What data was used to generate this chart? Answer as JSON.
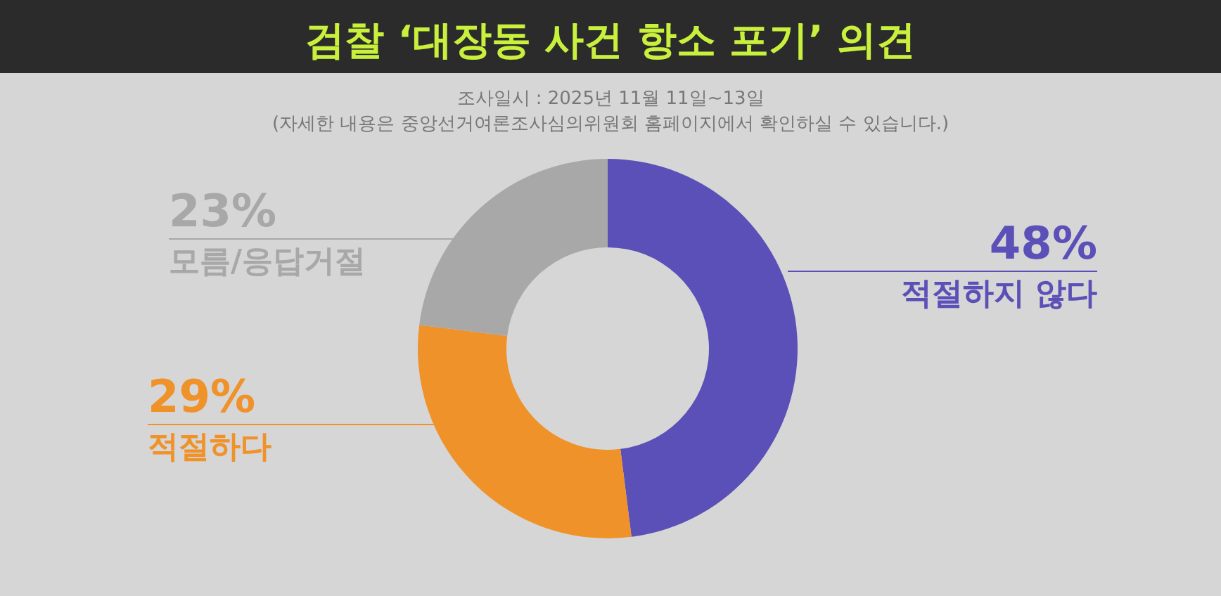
{
  "chart_data": {
    "type": "donut",
    "title": "검찰 ‘대장동 사건 항소 포기’ 의견",
    "subtitle": "조사일시 : 2025년 11월 11일~13일",
    "annotations": [
      "(자세한 내용은 중앙선거여론조사심의위원회 홈페이지에서 확인하실 수 있습니다.)"
    ],
    "categories": [
      "적절하지 않다",
      "적절하다",
      "모름/응답거절"
    ],
    "values": [
      48,
      29,
      23
    ],
    "colors": [
      "#5a50b8",
      "#f0922a",
      "#a8a8a8"
    ],
    "value_labels": [
      "48%",
      "29%",
      "23%"
    ]
  }
}
